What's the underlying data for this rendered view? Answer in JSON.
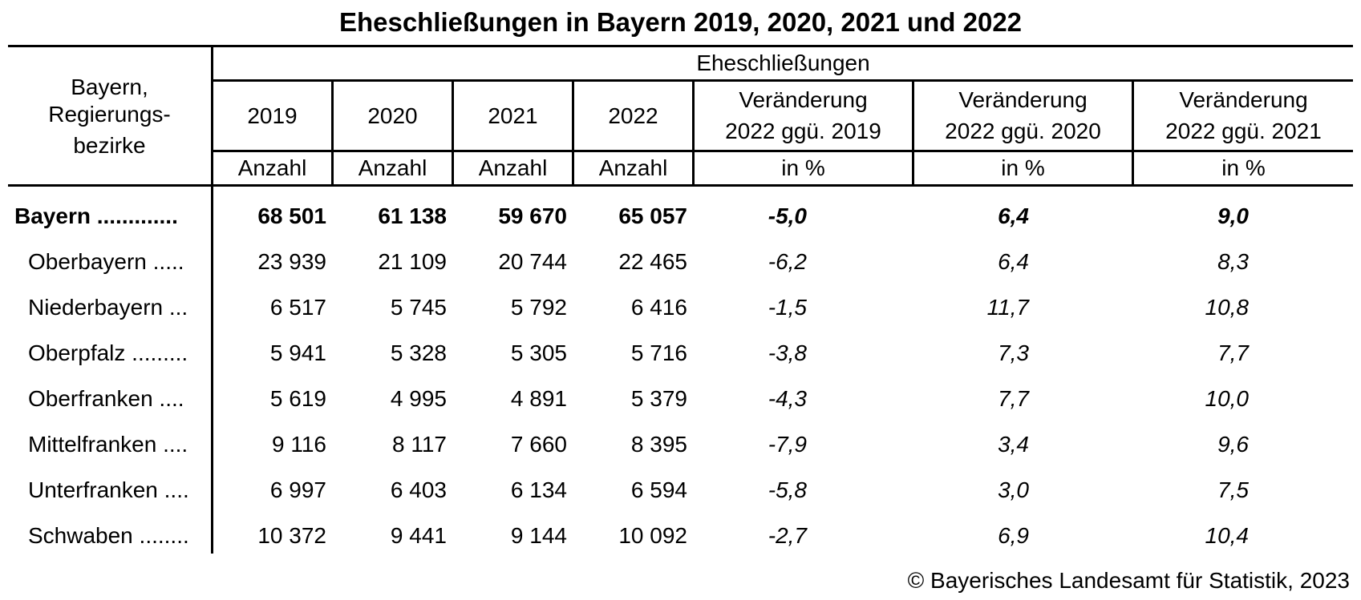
{
  "title": "Eheschließungen in Bayern 2019, 2020, 2021 und 2022",
  "header": {
    "region_label_line1": "Bayern,",
    "region_label_line2": "Regierungs-",
    "region_label_line3": "bezirke",
    "group_label": "Eheschließungen",
    "columns": [
      {
        "year": "2019",
        "unit": "Anzahl"
      },
      {
        "year": "2020",
        "unit": "Anzahl"
      },
      {
        "year": "2021",
        "unit": "Anzahl"
      },
      {
        "year": "2022",
        "unit": "Anzahl"
      },
      {
        "line1": "Veränderung",
        "line2": "2022 ggü. 2019",
        "unit": "in %"
      },
      {
        "line1": "Veränderung",
        "line2": "2022 ggü. 2020",
        "unit": "in %"
      },
      {
        "line1": "Veränderung",
        "line2": "2022 ggü. 2021",
        "unit": "in %"
      }
    ]
  },
  "rows": [
    {
      "label": "Bayern .............",
      "values": [
        "68 501",
        "61 138",
        "59 670",
        "65 057",
        "-5,0",
        "6,4",
        "9,0"
      ]
    },
    {
      "label": "Oberbayern .....",
      "values": [
        "23 939",
        "21 109",
        "20 744",
        "22 465",
        "-6,2",
        "6,4",
        "8,3"
      ]
    },
    {
      "label": "Niederbayern ...",
      "values": [
        "6 517",
        "5 745",
        "5 792",
        "6 416",
        "-1,5",
        "11,7",
        "10,8"
      ]
    },
    {
      "label": "Oberpfalz .........",
      "values": [
        "5 941",
        "5 328",
        "5 305",
        "5 716",
        "-3,8",
        "7,3",
        "7,7"
      ]
    },
    {
      "label": "Oberfranken ....",
      "values": [
        "5 619",
        "4 995",
        "4 891",
        "5 379",
        "-4,3",
        "7,7",
        "10,0"
      ]
    },
    {
      "label": "Mittelfranken ....",
      "values": [
        "9 116",
        "8 117",
        "7 660",
        "8 395",
        "-7,9",
        "3,4",
        "9,6"
      ]
    },
    {
      "label": "Unterfranken ....",
      "values": [
        "6 997",
        "6 403",
        "6 134",
        "6 594",
        "-5,8",
        "3,0",
        "7,5"
      ]
    },
    {
      "label": "Schwaben ........",
      "values": [
        "10 372",
        "9 441",
        "9 144",
        "10 092",
        "-2,7",
        "6,9",
        "10,4"
      ]
    }
  ],
  "footer": "© Bayerisches Landesamt für Statistik, 2023"
}
